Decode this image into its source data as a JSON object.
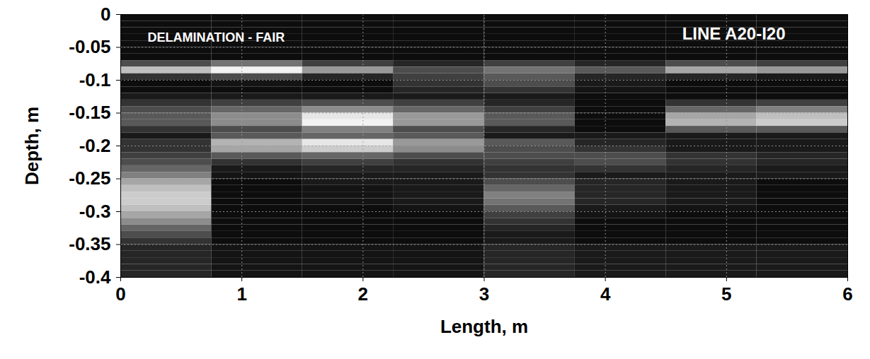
{
  "chart_data": {
    "type": "heatmap",
    "title": "LINE A20-I20",
    "annotations": [
      "DELAMINATION - FAIR"
    ],
    "x_label": "Length, m",
    "y_label": "Depth, m",
    "xlim": [
      0,
      6
    ],
    "xticks": [
      0,
      1,
      2,
      3,
      4,
      5,
      6
    ],
    "ylim": [
      -0.4,
      0
    ],
    "yticks": [
      0,
      -0.05,
      -0.1,
      -0.15,
      -0.2,
      -0.25,
      -0.3,
      -0.35,
      -0.4
    ],
    "grid": true,
    "zlim": [
      0,
      1
    ],
    "x_bins": [
      0,
      0.75,
      1.5,
      2.25,
      3,
      3.75,
      4.5,
      5.25,
      6
    ],
    "y_bins": [
      0,
      -0.01,
      -0.02,
      -0.03,
      -0.04,
      -0.05,
      -0.06,
      -0.07,
      -0.08,
      -0.09,
      -0.1,
      -0.11,
      -0.12,
      -0.13,
      -0.14,
      -0.15,
      -0.16,
      -0.17,
      -0.18,
      -0.19,
      -0.2,
      -0.21,
      -0.22,
      -0.23,
      -0.24,
      -0.25,
      -0.26,
      -0.27,
      -0.28,
      -0.29,
      -0.3,
      -0.31,
      -0.32,
      -0.33,
      -0.34,
      -0.35,
      -0.36,
      -0.37,
      -0.38,
      -0.39,
      -0.4
    ],
    "cells": [
      [
        0.05,
        0.05,
        0.05,
        0.05,
        0.05,
        0.05,
        0.05,
        0.05
      ],
      [
        0.05,
        0.05,
        0.05,
        0.05,
        0.05,
        0.05,
        0.05,
        0.05
      ],
      [
        0.05,
        0.05,
        0.05,
        0.05,
        0.05,
        0.05,
        0.05,
        0.05
      ],
      [
        0.05,
        0.05,
        0.05,
        0.05,
        0.05,
        0.05,
        0.05,
        0.05
      ],
      [
        0.05,
        0.05,
        0.05,
        0.05,
        0.05,
        0.05,
        0.05,
        0.05
      ],
      [
        0.05,
        0.05,
        0.05,
        0.05,
        0.05,
        0.05,
        0.05,
        0.05
      ],
      [
        0.05,
        0.05,
        0.05,
        0.05,
        0.05,
        0.05,
        0.05,
        0.05
      ],
      [
        0.3,
        0.45,
        0.25,
        0.15,
        0.25,
        0.15,
        0.3,
        0.25
      ],
      [
        0.75,
        0.95,
        0.6,
        0.3,
        0.45,
        0.35,
        0.65,
        0.6
      ],
      [
        0.2,
        0.3,
        0.15,
        0.25,
        0.35,
        0.15,
        0.15,
        0.1
      ],
      [
        0.05,
        0.08,
        0.05,
        0.2,
        0.3,
        0.1,
        0.05,
        0.05
      ],
      [
        0.05,
        0.05,
        0.05,
        0.15,
        0.2,
        0.08,
        0.05,
        0.05
      ],
      [
        0.1,
        0.1,
        0.1,
        0.1,
        0.1,
        0.05,
        0.05,
        0.05
      ],
      [
        0.2,
        0.25,
        0.3,
        0.25,
        0.15,
        0.05,
        0.2,
        0.25
      ],
      [
        0.3,
        0.4,
        0.55,
        0.4,
        0.25,
        0.05,
        0.4,
        0.5
      ],
      [
        0.35,
        0.55,
        0.9,
        0.6,
        0.35,
        0.05,
        0.65,
        0.75
      ],
      [
        0.35,
        0.55,
        0.95,
        0.6,
        0.35,
        0.05,
        0.7,
        0.8
      ],
      [
        0.2,
        0.3,
        0.5,
        0.3,
        0.15,
        0.05,
        0.35,
        0.35
      ],
      [
        0.1,
        0.35,
        0.4,
        0.35,
        0.1,
        0.1,
        0.1,
        0.1
      ],
      [
        0.2,
        0.7,
        0.9,
        0.6,
        0.35,
        0.15,
        0.1,
        0.1
      ],
      [
        0.2,
        0.65,
        0.8,
        0.55,
        0.3,
        0.2,
        0.1,
        0.1
      ],
      [
        0.25,
        0.35,
        0.4,
        0.3,
        0.3,
        0.3,
        0.2,
        0.15
      ],
      [
        0.3,
        0.2,
        0.25,
        0.2,
        0.25,
        0.3,
        0.2,
        0.15
      ],
      [
        0.4,
        0.1,
        0.15,
        0.15,
        0.2,
        0.2,
        0.15,
        0.1
      ],
      [
        0.5,
        0.08,
        0.1,
        0.1,
        0.2,
        0.1,
        0.1,
        0.1
      ],
      [
        0.65,
        0.05,
        0.1,
        0.1,
        0.3,
        0.15,
        0.1,
        0.05
      ],
      [
        0.75,
        0.05,
        0.08,
        0.1,
        0.4,
        0.15,
        0.1,
        0.05
      ],
      [
        0.8,
        0.05,
        0.08,
        0.1,
        0.5,
        0.15,
        0.1,
        0.05
      ],
      [
        0.8,
        0.05,
        0.08,
        0.1,
        0.45,
        0.15,
        0.1,
        0.05
      ],
      [
        0.75,
        0.05,
        0.05,
        0.08,
        0.35,
        0.1,
        0.08,
        0.05
      ],
      [
        0.65,
        0.05,
        0.05,
        0.05,
        0.25,
        0.08,
        0.05,
        0.05
      ],
      [
        0.55,
        0.05,
        0.05,
        0.05,
        0.2,
        0.05,
        0.05,
        0.05
      ],
      [
        0.4,
        0.05,
        0.05,
        0.05,
        0.15,
        0.05,
        0.05,
        0.05
      ],
      [
        0.3,
        0.05,
        0.05,
        0.05,
        0.1,
        0.05,
        0.05,
        0.05
      ],
      [
        0.2,
        0.05,
        0.05,
        0.05,
        0.1,
        0.05,
        0.05,
        0.05
      ],
      [
        0.15,
        0.08,
        0.08,
        0.08,
        0.15,
        0.1,
        0.1,
        0.1
      ],
      [
        0.15,
        0.08,
        0.08,
        0.08,
        0.15,
        0.1,
        0.1,
        0.1
      ],
      [
        0.15,
        0.08,
        0.08,
        0.08,
        0.15,
        0.1,
        0.1,
        0.1
      ],
      [
        0.15,
        0.08,
        0.08,
        0.08,
        0.15,
        0.1,
        0.1,
        0.1
      ],
      [
        0.15,
        0.08,
        0.08,
        0.08,
        0.15,
        0.1,
        0.1,
        0.1
      ]
    ]
  }
}
